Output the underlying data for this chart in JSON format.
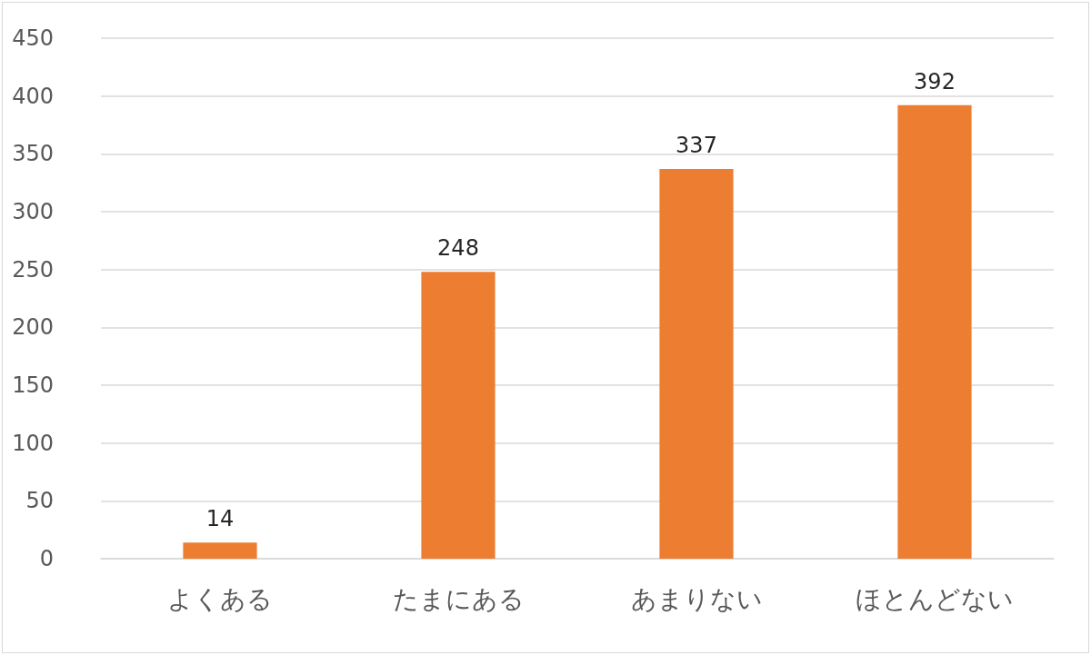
{
  "chart_data": {
    "type": "bar",
    "categories": [
      "よくある",
      "たまにある",
      "あまりない",
      "ほとんどない"
    ],
    "values": [
      14,
      248,
      337,
      392
    ],
    "color": "#ed7d31",
    "ylim": [
      0,
      450
    ],
    "yticks": [
      0,
      50,
      100,
      150,
      200,
      250,
      300,
      350,
      400,
      450
    ],
    "grid": "y",
    "data_labels": true
  }
}
